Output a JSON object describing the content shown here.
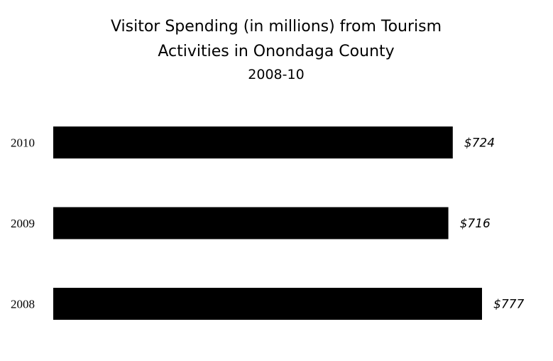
{
  "chart_data": {
    "type": "bar",
    "orientation": "horizontal",
    "title_lines": [
      "Visitor Spending (in millions)  from Tourism",
      "Activities in Onondaga County"
    ],
    "subtitle": "2008-10",
    "categories": [
      "2010",
      "2009",
      "2008"
    ],
    "values": [
      724,
      716,
      777
    ],
    "data_labels": [
      "$724",
      "$716",
      "$777"
    ],
    "xlabel": "",
    "ylabel": "",
    "xlim": [
      0,
      777
    ],
    "grid": false,
    "legend": "none",
    "bar_color": "#000000"
  }
}
